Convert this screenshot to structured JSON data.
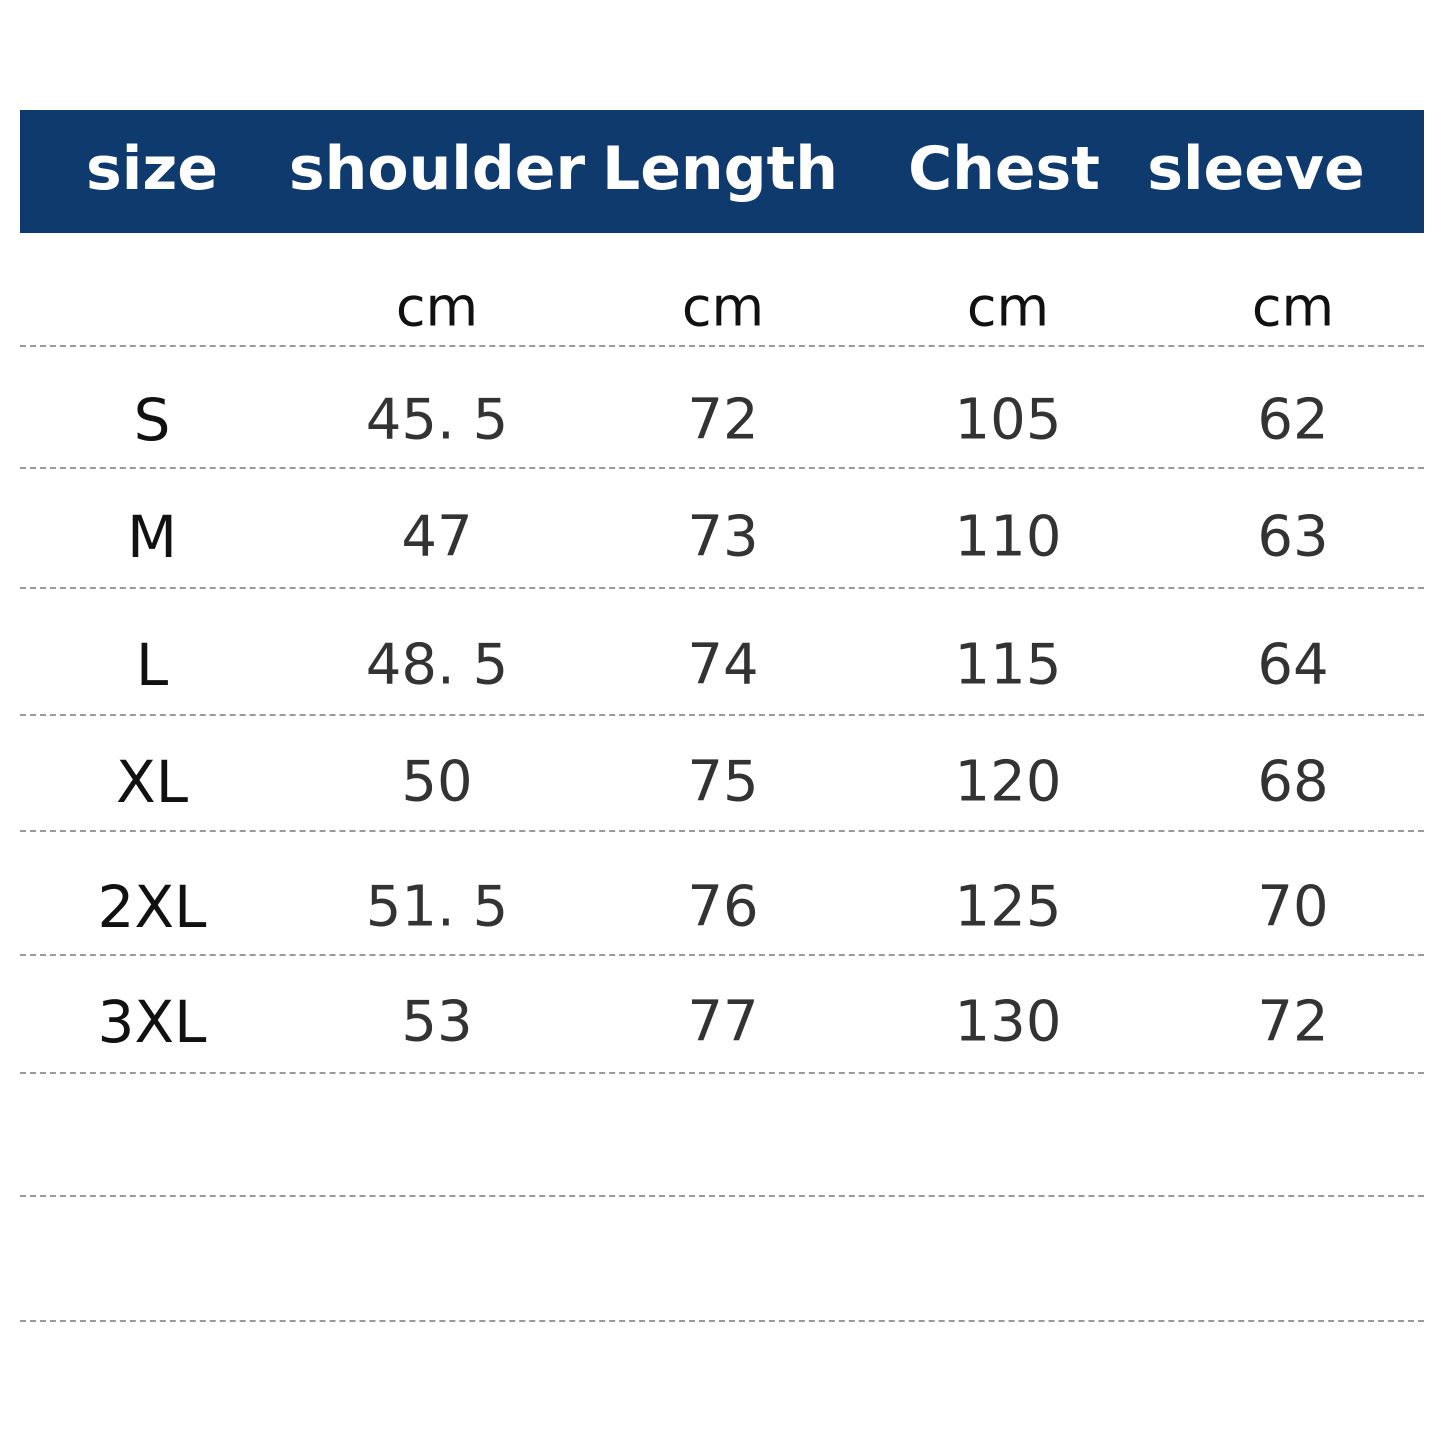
{
  "header": {
    "columns": [
      "size",
      "shoulder",
      "Length",
      "Chest",
      "sleeve"
    ],
    "background_color": "#0f3a6e"
  },
  "units": [
    "",
    "cm",
    "cm",
    "cm",
    "cm"
  ],
  "rows": [
    [
      "S",
      "45. 5",
      "72",
      "105",
      "62"
    ],
    [
      "M",
      "47",
      "73",
      "110",
      "63"
    ],
    [
      "L",
      "48. 5",
      "74",
      "115",
      "64"
    ],
    [
      "XL",
      "50",
      "75",
      "120",
      "68"
    ],
    [
      "2XL",
      "51. 5",
      "76",
      "125",
      "70"
    ],
    [
      "3XL",
      "53",
      "77",
      "130",
      "72"
    ]
  ]
}
